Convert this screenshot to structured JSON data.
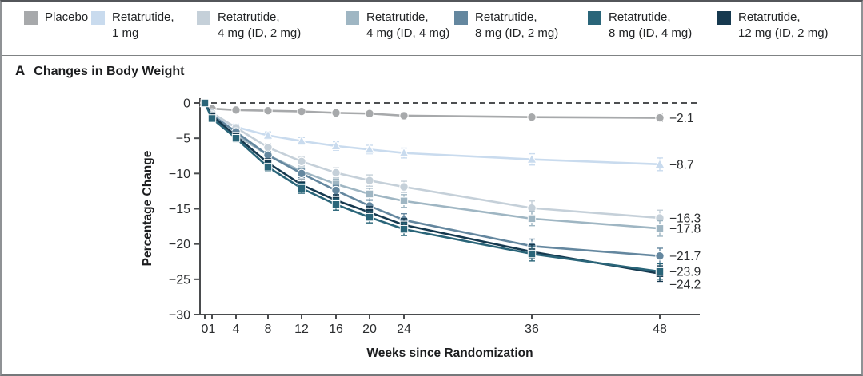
{
  "figure": {
    "panel_label": "A",
    "panel_title": "Changes in Body Weight"
  },
  "legend": {
    "items": [
      {
        "line1": "Placebo",
        "line2": "",
        "color": "#a7a9ab"
      },
      {
        "line1": "Retatrutide,",
        "line2": "1 mg",
        "color": "#c9dbee"
      },
      {
        "line1": "Retatrutide,",
        "line2": "4 mg (ID, 2 mg)",
        "color": "#c5d0d9"
      },
      {
        "line1": "Retatrutide,",
        "line2": "4 mg (ID, 4 mg)",
        "color": "#9fb6c3"
      },
      {
        "line1": "Retatrutide,",
        "line2": "8 mg (ID, 2 mg)",
        "color": "#64879f"
      },
      {
        "line1": "Retatrutide,",
        "line2": "8 mg (ID, 4 mg)",
        "color": "#2a6579"
      },
      {
        "line1": "Retatrutide,",
        "line2": "12 mg (ID, 2 mg)",
        "color": "#16394f"
      }
    ]
  },
  "chart_data": {
    "type": "line",
    "title": "Changes in Body Weight",
    "xlabel": "Weeks since Randomization",
    "ylabel": "Percentage Change",
    "x": [
      0,
      1,
      4,
      8,
      12,
      16,
      20,
      24,
      36,
      48
    ],
    "x_tick_labels": [
      "0",
      "1",
      "4",
      "8",
      "12",
      "16",
      "20",
      "24",
      "36",
      "48"
    ],
    "y_ticks": [
      0,
      -5,
      -10,
      -15,
      -20,
      -25,
      -30
    ],
    "y_tick_labels": [
      "0",
      "−5",
      "−10",
      "−15",
      "−20",
      "−25",
      "−30"
    ],
    "ylim": [
      -30,
      0
    ],
    "zero_reference_line": true,
    "grid": false,
    "legend_position": "top",
    "series": [
      {
        "name": "Placebo",
        "color": "#a7a9ab",
        "marker": "circle",
        "end_label": "−2.1",
        "values": [
          0,
          -0.8,
          -1.0,
          -1.1,
          -1.2,
          -1.4,
          -1.5,
          -1.8,
          -2.0,
          -2.1
        ],
        "err": [
          0,
          0.2,
          0.2,
          0.3,
          0.3,
          0.3,
          0.4,
          0.4,
          0.4,
          0.5
        ]
      },
      {
        "name": "Retatrutide, 1 mg",
        "color": "#c9dbee",
        "marker": "triangle",
        "end_label": "−8.7",
        "values": [
          0,
          -1.9,
          -3.4,
          -4.6,
          -5.4,
          -6.1,
          -6.6,
          -7.1,
          -8.0,
          -8.7
        ],
        "err": [
          0,
          0.3,
          0.4,
          0.5,
          0.5,
          0.6,
          0.6,
          0.7,
          0.8,
          0.9
        ]
      },
      {
        "name": "Retatrutide, 4 mg (ID, 2 mg)",
        "color": "#c5d0d9",
        "marker": "circle",
        "end_label": "−16.3",
        "values": [
          0,
          -1.4,
          -3.5,
          -6.3,
          -8.3,
          -9.9,
          -11.0,
          -11.9,
          -14.9,
          -16.3
        ],
        "err": [
          0,
          0.3,
          0.4,
          0.5,
          0.6,
          0.7,
          0.8,
          0.8,
          1.0,
          1.1
        ]
      },
      {
        "name": "Retatrutide, 4 mg (ID, 4 mg)",
        "color": "#9fb6c3",
        "marker": "square",
        "end_label": "−17.8",
        "values": [
          0,
          -2.0,
          -4.5,
          -7.4,
          -9.7,
          -11.5,
          -12.9,
          -13.9,
          -16.4,
          -17.8
        ],
        "err": [
          0,
          0.3,
          0.4,
          0.5,
          0.6,
          0.7,
          0.8,
          0.9,
          1.0,
          1.1
        ]
      },
      {
        "name": "Retatrutide, 8 mg (ID, 2 mg)",
        "color": "#64879f",
        "marker": "circle",
        "end_label": "−21.7",
        "values": [
          0,
          -1.7,
          -4.1,
          -7.4,
          -10.0,
          -12.4,
          -14.6,
          -16.6,
          -20.3,
          -21.7
        ],
        "err": [
          0,
          0.3,
          0.4,
          0.5,
          0.6,
          0.7,
          0.8,
          0.9,
          1.0,
          1.1
        ]
      },
      {
        "name": "Retatrutide, 8 mg (ID, 4 mg)",
        "color": "#2a6579",
        "marker": "square",
        "end_label": "−23.9",
        "values": [
          0,
          -2.2,
          -5.0,
          -9.1,
          -12.1,
          -14.4,
          -16.2,
          -17.9,
          -21.4,
          -23.9
        ],
        "err": [
          0,
          0.3,
          0.5,
          0.6,
          0.7,
          0.8,
          0.8,
          0.9,
          1.0,
          1.1
        ]
      },
      {
        "name": "Retatrutide, 12 mg (ID, 2 mg)",
        "color": "#16394f",
        "marker": "square",
        "end_label": "−24.2",
        "values": [
          0,
          -1.8,
          -4.7,
          -8.5,
          -11.6,
          -13.8,
          -15.5,
          -17.3,
          -21.1,
          -24.2
        ],
        "err": [
          0,
          0.3,
          0.4,
          0.6,
          0.7,
          0.8,
          0.8,
          0.9,
          1.0,
          1.1
        ]
      }
    ]
  }
}
